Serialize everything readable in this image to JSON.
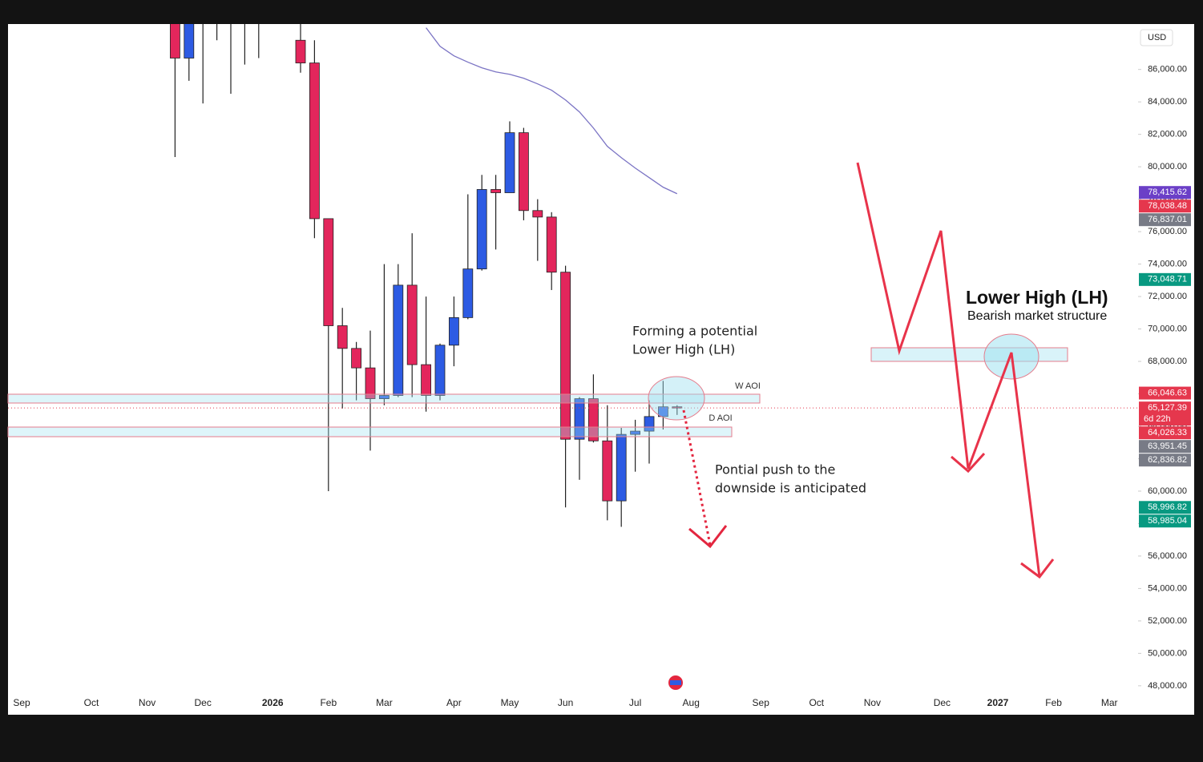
{
  "chart_data": {
    "type": "candlestick",
    "currency": "USD",
    "categories": [
      "Sep",
      null,
      null,
      null,
      null,
      "Oct",
      null,
      null,
      null,
      "Nov",
      null,
      null,
      null,
      "Dec",
      null,
      null,
      null,
      null,
      "2026",
      null,
      null,
      null,
      "Feb",
      null,
      null,
      null,
      "Mar",
      null,
      null,
      null,
      null,
      "Apr",
      null,
      null,
      null,
      "May",
      null,
      null,
      null,
      "Jun",
      null,
      null,
      null,
      null,
      "Jul",
      null,
      null,
      null,
      "Aug",
      null,
      null,
      null,
      null,
      "Sep",
      null,
      null,
      null,
      "Oct",
      null,
      null,
      null,
      "Nov",
      null,
      null,
      null,
      null,
      "Dec",
      null,
      null,
      null,
      "2027",
      null,
      null,
      null,
      "Feb",
      null,
      null,
      null,
      "Mar"
    ],
    "open": [
      null,
      null,
      null,
      null,
      null,
      null,
      null,
      null,
      null,
      null,
      null,
      89000,
      86700,
      90000,
      91000,
      89500,
      89500,
      89000,
      null,
      null,
      87800,
      86400,
      76800,
      70200,
      68800,
      67600,
      65700,
      65900,
      72700,
      67800,
      65900,
      69000,
      70700,
      73700,
      78600,
      78400,
      82100,
      77300,
      76900,
      73500,
      63200,
      65700,
      63100,
      59400,
      63500,
      63700,
      64600,
      65200,
      null,
      null,
      null,
      null,
      null,
      null,
      null,
      null,
      null,
      null,
      null,
      null,
      null,
      null,
      null,
      null,
      null,
      null,
      null,
      null,
      null,
      null,
      null,
      null,
      null,
      null,
      null,
      null,
      null,
      null,
      null
    ],
    "high": [
      null,
      null,
      null,
      null,
      null,
      null,
      null,
      null,
      null,
      null,
      null,
      89500,
      89500,
      92000,
      91500,
      91000,
      90500,
      90000,
      null,
      null,
      89000,
      87800,
      76800,
      71300,
      69200,
      69900,
      74000,
      74000,
      75900,
      72000,
      69100,
      72000,
      78300,
      79500,
      79500,
      82800,
      82400,
      78000,
      77200,
      73900,
      65800,
      67200,
      65300,
      63900,
      64400,
      65600,
      66800,
      65300,
      null,
      null,
      null,
      null,
      null,
      null,
      null,
      null,
      null,
      null,
      null,
      null,
      null,
      null,
      null,
      null,
      null,
      null,
      null,
      null,
      null,
      null,
      null,
      null,
      null,
      null,
      null,
      null,
      null,
      null,
      null
    ],
    "low": [
      null,
      null,
      null,
      null,
      null,
      null,
      null,
      null,
      null,
      null,
      null,
      80600,
      85300,
      83900,
      87800,
      84500,
      86300,
      86700,
      null,
      null,
      85800,
      75600,
      60000,
      65100,
      65600,
      62500,
      65300,
      65800,
      65800,
      64900,
      65600,
      67700,
      70600,
      73600,
      74900,
      78400,
      76700,
      74200,
      72400,
      59000,
      60700,
      63000,
      58200,
      57800,
      61200,
      61700,
      63800,
      64700,
      null,
      null,
      null,
      null,
      null,
      null,
      null,
      null,
      null,
      null,
      null,
      null,
      null,
      null,
      null,
      null,
      null,
      null,
      null,
      null,
      null,
      null,
      null,
      null,
      null,
      null,
      null,
      null,
      null,
      null,
      null
    ],
    "close": [
      null,
      null,
      null,
      null,
      null,
      null,
      null,
      null,
      null,
      null,
      null,
      86700,
      89200,
      91500,
      89000,
      90500,
      90000,
      89800,
      null,
      null,
      86400,
      76800,
      70200,
      68800,
      67600,
      65700,
      65900,
      72700,
      67800,
      65900,
      69000,
      70700,
      73700,
      78600,
      78400,
      82100,
      77300,
      76900,
      73500,
      63200,
      65700,
      63100,
      59400,
      63500,
      63700,
      64600,
      65200,
      65127.39,
      null,
      null,
      null,
      null,
      null,
      null,
      null,
      null,
      null,
      null,
      null,
      null,
      null,
      null,
      null,
      null,
      null,
      null,
      null,
      null,
      null,
      null,
      null,
      null,
      null,
      null,
      null,
      null,
      null,
      null,
      null
    ],
    "up_color": "#2d5be3",
    "down_color": "#e3265c",
    "moving_average": {
      "color": "#7b74c4",
      "values": [
        null,
        null,
        null,
        null,
        null,
        null,
        null,
        null,
        null,
        null,
        null,
        null,
        null,
        null,
        null,
        null,
        null,
        null,
        null,
        null,
        null,
        null,
        null,
        null,
        null,
        null,
        null,
        null,
        null,
        88570,
        87430,
        86840,
        86450,
        86100,
        85850,
        85700,
        85460,
        85110,
        84720,
        84120,
        83380,
        82390,
        81260,
        80560,
        79920,
        79330,
        78740,
        78340,
        null,
        null,
        null,
        null,
        null,
        null,
        null,
        null,
        null,
        null,
        null,
        null,
        null,
        null,
        null,
        null,
        null,
        null,
        null,
        null,
        null,
        null,
        null,
        null,
        null,
        null,
        null,
        null,
        null,
        null,
        null
      ]
    },
    "ylim": [
      47500,
      88800
    ],
    "yticks": [
      {
        "value": 48000,
        "label": "48,000.00"
      },
      {
        "value": 50000,
        "label": "50,000.00"
      },
      {
        "value": 52000,
        "label": "52,000.00"
      },
      {
        "value": 54000,
        "label": "54,000.00"
      },
      {
        "value": 56000,
        "label": "56,000.00"
      },
      {
        "value": 58000,
        "label": "58,000.00"
      },
      {
        "value": 60000,
        "label": "60,000.00"
      },
      {
        "value": 62000,
        "label": "62,000.00"
      },
      {
        "value": 64000,
        "label": "64,000.00"
      },
      {
        "value": 66000,
        "label": "66,000.00"
      },
      {
        "value": 68000,
        "label": "68,000.00"
      },
      {
        "value": 70000,
        "label": "70,000.00"
      },
      {
        "value": 72000,
        "label": "72,000.00"
      },
      {
        "value": 74000,
        "label": "74,000.00"
      },
      {
        "value": 76000,
        "label": "76,000.00"
      },
      {
        "value": 78000,
        "label": "78,000.00"
      },
      {
        "value": 80000,
        "label": "80,000.00"
      },
      {
        "value": 82000,
        "label": "82,000.00"
      },
      {
        "value": 84000,
        "label": "84,000.00"
      },
      {
        "value": 86000,
        "label": "86,000.00"
      }
    ],
    "price_labels": [
      {
        "value": 78415.62,
        "label": "78,415.62",
        "color": "#6b3fc7"
      },
      {
        "value": 78038.48,
        "label": "78,038.48",
        "color": "#e5374d"
      },
      {
        "value": 76837.01,
        "label": "76,837.01",
        "color": "#787b86"
      },
      {
        "value": 73048.71,
        "label": "73,048.71",
        "color": "#089981"
      },
      {
        "value": 66046.63,
        "label": "66,046.63",
        "color": "#e5374d"
      },
      {
        "value": 65127.39,
        "label": "65,127.39",
        "color": "#e5374d",
        "countdown": "6d 22h"
      },
      {
        "value": 64026.33,
        "label": "64,026.33",
        "color": "#e5374d"
      },
      {
        "value": 63951.45,
        "label": "63,951.45",
        "color": "#787b86"
      },
      {
        "value": 62836.82,
        "label": "62,836.82",
        "color": "#787b86"
      },
      {
        "value": 58996.82,
        "label": "58,996.82",
        "color": "#089981"
      },
      {
        "value": 58985.04,
        "label": "58,985.04",
        "color": "#089981"
      }
    ],
    "annotations": {
      "w_aoi": "W AOI",
      "d_aoi": "D AOI",
      "forming": [
        "Forming a potential",
        "Lower High (LH)"
      ],
      "push": [
        "Pontial push to the",
        "downside is anticipated"
      ],
      "lh_title": "Lower High (LH)",
      "lh_subtitle": "Bearish market structure"
    }
  }
}
